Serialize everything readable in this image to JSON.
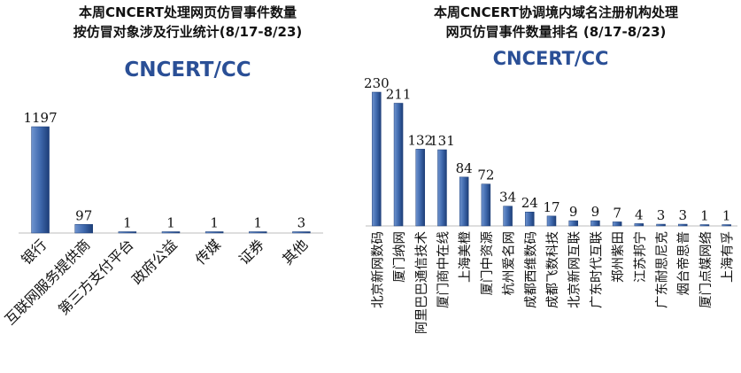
{
  "logo": {
    "text": "CNCERT/CC",
    "color": "#2a4f96",
    "accent": "#d03030"
  },
  "colors": {
    "bar_top": "#6f94cf",
    "bar_mid": "#3f69ad",
    "bar_bottom": "#1d3e78"
  },
  "chart_data": [
    {
      "type": "bar",
      "title": [
        "本周CNCERT处理网页仿冒事件数量",
        "按仿冒对象涉及行业统计(8/17-8/23)"
      ],
      "categories": [
        "银行",
        "互联网服务提供商",
        "第三方支付平台",
        "政府公益",
        "传媒",
        "证券",
        "其他"
      ],
      "values": [
        1197,
        97,
        1,
        1,
        1,
        1,
        3
      ],
      "xlabel": "",
      "ylabel": "",
      "ylim": [
        0,
        1197
      ],
      "grid": false,
      "legend": "none"
    },
    {
      "type": "bar",
      "title": [
        "本周CNCERT协调境内域名注册机构处理",
        "网页仿冒事件数量排名 (8/17-8/23)"
      ],
      "categories": [
        "北京新网数码",
        "厦门纳网",
        "阿里巴巴通信技术",
        "厦门商中在线",
        "上海美橙",
        "厦门中资源",
        "杭州爱名网",
        "成都西维数码",
        "成都飞数科技",
        "北京新网互联",
        "广东时代互联",
        "郑州紫田",
        "江苏邦宁",
        "广东耐思尼克",
        "烟台帝思普",
        "厦门点媒网络",
        "上海有孚"
      ],
      "values": [
        230,
        211,
        132,
        131,
        84,
        72,
        34,
        24,
        17,
        9,
        9,
        7,
        4,
        3,
        3,
        1,
        1
      ],
      "xlabel": "",
      "ylabel": "",
      "ylim": [
        0,
        230
      ],
      "grid": false,
      "legend": "none"
    }
  ]
}
